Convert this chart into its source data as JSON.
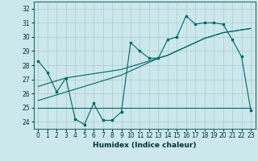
{
  "title": "",
  "xlabel": "Humidex (Indice chaleur)",
  "background_color": "#cce8ec",
  "grid_color": "#aacccc",
  "line_color": "#006666",
  "xlim": [
    -0.5,
    23.5
  ],
  "ylim": [
    23.5,
    32.5
  ],
  "yticks": [
    24,
    25,
    26,
    27,
    28,
    29,
    30,
    31,
    32
  ],
  "xticks": [
    0,
    1,
    2,
    3,
    4,
    5,
    6,
    7,
    8,
    9,
    10,
    11,
    12,
    13,
    14,
    15,
    16,
    17,
    18,
    19,
    20,
    21,
    22,
    23
  ],
  "s1": [
    28.3,
    27.5,
    26.1,
    27.1,
    24.2,
    23.8,
    25.3,
    24.1,
    24.1,
    24.7,
    29.6,
    29.0,
    28.5,
    28.5,
    29.8,
    30.0,
    31.5,
    30.9,
    31.0,
    31.0,
    30.9,
    29.8,
    28.6,
    24.8
  ],
  "s_flat": [
    25.0,
    25.0,
    25.0,
    25.0,
    25.0,
    25.0,
    25.0,
    25.0,
    25.0,
    25.0,
    25.0,
    25.0,
    25.0,
    25.0,
    25.0,
    25.0,
    25.0,
    25.0,
    25.0,
    25.0,
    25.0,
    25.0,
    25.0,
    25.0
  ],
  "s_trend1": [
    25.5,
    25.7,
    25.9,
    26.1,
    26.3,
    26.5,
    26.7,
    26.9,
    27.1,
    27.3,
    27.6,
    27.9,
    28.2,
    28.5,
    28.7,
    29.0,
    29.3,
    29.6,
    29.9,
    30.1,
    30.3,
    30.4,
    30.5,
    30.6
  ],
  "s_trend2": [
    26.5,
    26.7,
    26.9,
    27.1,
    27.2,
    27.3,
    27.4,
    27.5,
    27.6,
    27.7,
    27.9,
    28.1,
    28.3,
    28.5,
    28.7,
    29.0,
    29.3,
    29.6,
    29.9,
    30.1,
    30.3,
    30.4,
    30.5,
    30.6
  ]
}
